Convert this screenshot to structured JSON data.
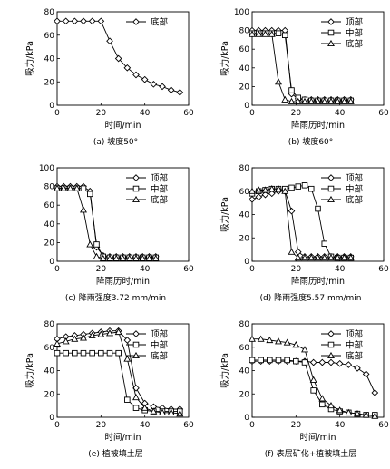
{
  "chart_data": [
    {
      "type": "line",
      "caption": "(a) 坡度50°",
      "xlabel": "时间/min",
      "ylabel": "吸力/kPa",
      "xlim": [
        0,
        60
      ],
      "ylim": [
        0,
        80
      ],
      "xticks": [
        0,
        20,
        40,
        60
      ],
      "yticks": [
        0,
        20,
        40,
        60,
        80
      ],
      "legend_position": "top-right",
      "series": [
        {
          "name": "底部",
          "marker": "diamond",
          "x": [
            0,
            4,
            8,
            12,
            16,
            20,
            24,
            28,
            32,
            36,
            40,
            44,
            48,
            52,
            56
          ],
          "y": [
            72,
            72,
            72,
            72,
            72,
            72,
            55,
            40,
            32,
            26,
            22,
            18,
            16,
            13,
            11
          ]
        }
      ]
    },
    {
      "type": "line",
      "caption": "(b) 坡度60°",
      "xlabel": "降雨历时/min",
      "ylabel": "吸力/kPa",
      "xlim": [
        0,
        60
      ],
      "ylim": [
        0,
        100
      ],
      "xticks": [
        0,
        20,
        40,
        60
      ],
      "yticks": [
        0,
        20,
        40,
        60,
        80,
        100
      ],
      "legend_position": "top-right",
      "series": [
        {
          "name": "顶部",
          "marker": "diamond",
          "x": [
            0,
            3,
            6,
            9,
            12,
            15,
            18,
            21,
            24,
            27,
            30,
            33,
            36,
            39,
            42,
            45
          ],
          "y": [
            80,
            80,
            80,
            80,
            80,
            80,
            12,
            7,
            6,
            6,
            6,
            6,
            6,
            6,
            6,
            6
          ]
        },
        {
          "name": "中部",
          "marker": "square",
          "x": [
            0,
            3,
            6,
            9,
            12,
            15,
            18,
            21,
            24,
            27,
            30,
            33,
            36,
            39,
            42,
            45
          ],
          "y": [
            77,
            77,
            77,
            77,
            77,
            75,
            16,
            8,
            6,
            5,
            5,
            5,
            5,
            5,
            5,
            5
          ]
        },
        {
          "name": "底部",
          "marker": "triangle",
          "x": [
            0,
            3,
            6,
            9,
            12,
            15,
            18,
            21,
            24,
            27,
            30,
            33,
            36,
            39,
            42,
            45
          ],
          "y": [
            76,
            76,
            76,
            76,
            25,
            6,
            4,
            4,
            4,
            4,
            4,
            4,
            4,
            4,
            4,
            4
          ]
        }
      ]
    },
    {
      "type": "line",
      "caption": "(c) 降雨强度3.72 mm/min",
      "xlabel": "降雨历时/min",
      "ylabel": "",
      "xlim": [
        0,
        60
      ],
      "ylim": [
        0,
        100
      ],
      "xticks": [
        0,
        20,
        40,
        60
      ],
      "yticks": [
        0,
        20,
        40,
        60,
        80,
        100
      ],
      "legend_position": "top-right",
      "series": [
        {
          "name": "顶部",
          "marker": "diamond",
          "x": [
            0,
            3,
            6,
            9,
            12,
            15,
            18,
            21,
            24,
            27,
            30,
            33,
            36,
            39,
            42,
            45
          ],
          "y": [
            80,
            80,
            80,
            80,
            80,
            75,
            15,
            6,
            5,
            5,
            5,
            5,
            5,
            5,
            5,
            5
          ]
        },
        {
          "name": "中部",
          "marker": "square",
          "x": [
            0,
            3,
            6,
            9,
            12,
            15,
            18,
            21,
            24,
            27,
            30,
            33,
            36,
            39,
            42,
            45
          ],
          "y": [
            78,
            78,
            78,
            78,
            78,
            72,
            18,
            5,
            4,
            4,
            4,
            4,
            4,
            4,
            4,
            4
          ]
        },
        {
          "name": "底部",
          "marker": "triangle",
          "x": [
            0,
            3,
            6,
            9,
            12,
            15,
            18,
            21,
            24,
            27,
            30,
            33,
            36,
            39,
            42,
            45
          ],
          "y": [
            78,
            78,
            78,
            78,
            55,
            18,
            5,
            3,
            3,
            3,
            3,
            3,
            3,
            3,
            3,
            3
          ]
        }
      ]
    },
    {
      "type": "line",
      "caption": "(d) 降雨强度5.57 mm/min",
      "xlabel": "降雨历时/min",
      "ylabel": "吸力/kPa",
      "xlim": [
        0,
        60
      ],
      "ylim": [
        0,
        80
      ],
      "xticks": [
        0,
        20,
        40,
        60
      ],
      "yticks": [
        0,
        20,
        40,
        60,
        80
      ],
      "legend_position": "top-right",
      "series": [
        {
          "name": "顶部",
          "marker": "diamond",
          "x": [
            0,
            3,
            6,
            9,
            12,
            15,
            18,
            21,
            24,
            27,
            30,
            33,
            36,
            39,
            42,
            45
          ],
          "y": [
            53,
            55,
            57,
            58,
            60,
            60,
            43,
            8,
            4,
            4,
            4,
            4,
            4,
            4,
            4,
            4
          ]
        },
        {
          "name": "中部",
          "marker": "square",
          "x": [
            0,
            3,
            6,
            9,
            12,
            15,
            18,
            21,
            24,
            27,
            30,
            33,
            36,
            39,
            42,
            45
          ],
          "y": [
            58,
            60,
            61,
            62,
            62,
            62,
            63,
            64,
            65,
            62,
            45,
            15,
            4,
            3,
            3,
            3
          ]
        },
        {
          "name": "底部",
          "marker": "triangle",
          "x": [
            0,
            3,
            6,
            9,
            12,
            15,
            18,
            21,
            24,
            27,
            30,
            33,
            36,
            39,
            42,
            45
          ],
          "y": [
            60,
            61,
            61,
            62,
            62,
            60,
            8,
            3,
            3,
            3,
            3,
            3,
            3,
            3,
            3,
            3
          ]
        }
      ]
    },
    {
      "type": "line",
      "caption": "(e) 植被填土层",
      "xlabel": "时间/min",
      "ylabel": "吸力/kPa",
      "xlim": [
        0,
        60
      ],
      "ylim": [
        0,
        80
      ],
      "xticks": [
        0,
        20,
        40,
        60
      ],
      "yticks": [
        0,
        20,
        40,
        60,
        80
      ],
      "legend_position": "top-right",
      "series": [
        {
          "name": "顶部",
          "marker": "diamond",
          "x": [
            0,
            4,
            8,
            12,
            16,
            20,
            24,
            28,
            32,
            36,
            40,
            44,
            48,
            52,
            56
          ],
          "y": [
            67,
            69,
            70,
            71,
            72,
            73,
            74,
            74,
            66,
            25,
            12,
            9,
            8,
            7,
            7
          ]
        },
        {
          "name": "中部",
          "marker": "square",
          "x": [
            0,
            4,
            8,
            12,
            16,
            20,
            24,
            28,
            32,
            36,
            40,
            44,
            48,
            52,
            56
          ],
          "y": [
            55,
            55,
            55,
            55,
            55,
            55,
            55,
            55,
            15,
            8,
            6,
            5,
            5,
            5,
            5
          ]
        },
        {
          "name": "底部",
          "marker": "triangle",
          "x": [
            0,
            4,
            8,
            12,
            16,
            20,
            24,
            28,
            32,
            36,
            40,
            44,
            48,
            52,
            56
          ],
          "y": [
            63,
            65,
            67,
            68,
            70,
            71,
            72,
            73,
            50,
            17,
            8,
            5,
            4,
            4,
            3
          ]
        }
      ]
    },
    {
      "type": "line",
      "caption": "(f) 表层矿化+植被填土层",
      "xlabel": "时间/min",
      "ylabel": "吸力/kPa",
      "xlim": [
        0,
        60
      ],
      "ylim": [
        0,
        80
      ],
      "xticks": [
        0,
        20,
        40,
        60
      ],
      "yticks": [
        0,
        20,
        40,
        60,
        80
      ],
      "legend_position": "top-right",
      "series": [
        {
          "name": "顶部",
          "marker": "diamond",
          "x": [
            0,
            4,
            8,
            12,
            16,
            20,
            24,
            28,
            32,
            36,
            40,
            44,
            48,
            52,
            56
          ],
          "y": [
            48,
            48,
            48,
            48,
            48,
            48,
            48,
            47,
            47,
            47,
            46,
            45,
            42,
            37,
            21
          ]
        },
        {
          "name": "中部",
          "marker": "square",
          "x": [
            0,
            4,
            8,
            12,
            16,
            20,
            24,
            28,
            32,
            36,
            40,
            44,
            48,
            52,
            56
          ],
          "y": [
            49,
            49,
            49,
            49,
            49,
            48,
            47,
            23,
            11,
            7,
            5,
            4,
            3,
            2,
            2
          ]
        },
        {
          "name": "底部",
          "marker": "triangle",
          "x": [
            0,
            4,
            8,
            12,
            16,
            20,
            24,
            28,
            32,
            36,
            40,
            44,
            48,
            52,
            56
          ],
          "y": [
            67,
            67,
            66,
            65,
            64,
            62,
            58,
            32,
            16,
            10,
            6,
            4,
            3,
            2,
            1
          ]
        }
      ]
    }
  ]
}
